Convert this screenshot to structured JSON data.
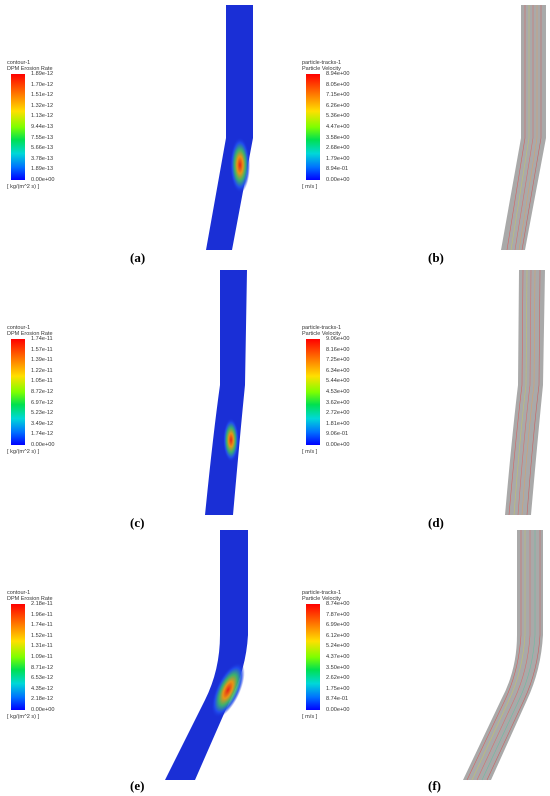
{
  "panels": [
    {
      "id": "a",
      "caption": "(a)",
      "kind": "erosion",
      "title1": "contour-1",
      "title2": "DPM Erosion Rate",
      "ticks": [
        "1.89e-12",
        "1.70e-12",
        "1.51e-12",
        "1.32e-12",
        "1.13e-12",
        "9.44e-13",
        "7.55e-13",
        "5.66e-13",
        "3.78e-13",
        "1.89e-13",
        "0.00e+00"
      ],
      "unit": "[ kg/(m^2 s) ]"
    },
    {
      "id": "b",
      "caption": "(b)",
      "kind": "velocity",
      "title1": "particle-tracks-1",
      "title2": "Particle Velocity",
      "ticks": [
        "8.94e+00",
        "8.05e+00",
        "7.15e+00",
        "6.26e+00",
        "5.36e+00",
        "4.47e+00",
        "3.58e+00",
        "2.68e+00",
        "1.79e+00",
        "8.94e-01",
        "0.00e+00"
      ],
      "unit": "[ m/s ]"
    },
    {
      "id": "c",
      "caption": "(c)",
      "kind": "erosion",
      "title1": "contour-1",
      "title2": "DPM Erosion Rate",
      "ticks": [
        "1.74e-11",
        "1.57e-11",
        "1.39e-11",
        "1.22e-11",
        "1.05e-11",
        "8.72e-12",
        "6.97e-12",
        "5.23e-12",
        "3.49e-12",
        "1.74e-12",
        "0.00e+00"
      ],
      "unit": "[ kg/(m^2 s) ]"
    },
    {
      "id": "d",
      "caption": "(d)",
      "kind": "velocity",
      "title1": "particle-tracks-1",
      "title2": "Particle Velocity",
      "ticks": [
        "9.06e+00",
        "8.16e+00",
        "7.25e+00",
        "6.34e+00",
        "5.44e+00",
        "4.53e+00",
        "3.62e+00",
        "2.72e+00",
        "1.81e+00",
        "9.06e-01",
        "0.00e+00"
      ],
      "unit": "[ m/s ]"
    },
    {
      "id": "e",
      "caption": "(e)",
      "kind": "erosion",
      "title1": "contour-1",
      "title2": "DPM Erosion Rate",
      "ticks": [
        "2.18e-11",
        "1.96e-11",
        "1.74e-11",
        "1.52e-11",
        "1.31e-11",
        "1.09e-11",
        "8.71e-12",
        "6.53e-12",
        "4.35e-12",
        "2.18e-12",
        "0.00e+00"
      ],
      "unit": "[ kg/(m^2 s) ]"
    },
    {
      "id": "f",
      "caption": "(f)",
      "kind": "velocity",
      "title1": "particle-tracks-1",
      "title2": "Particle Velocity",
      "ticks": [
        "8.74e+00",
        "7.87e+00",
        "6.99e+00",
        "6.12e+00",
        "5.24e+00",
        "4.37e+00",
        "3.50e+00",
        "2.62e+00",
        "1.75e+00",
        "8.74e-01",
        "0.00e+00"
      ],
      "unit": "[ m/s ]"
    }
  ],
  "colors": {
    "pipe_blue": "#1a2fd6",
    "pipe_gray": "#a9a9a9",
    "hot_red": "#ff2000"
  }
}
